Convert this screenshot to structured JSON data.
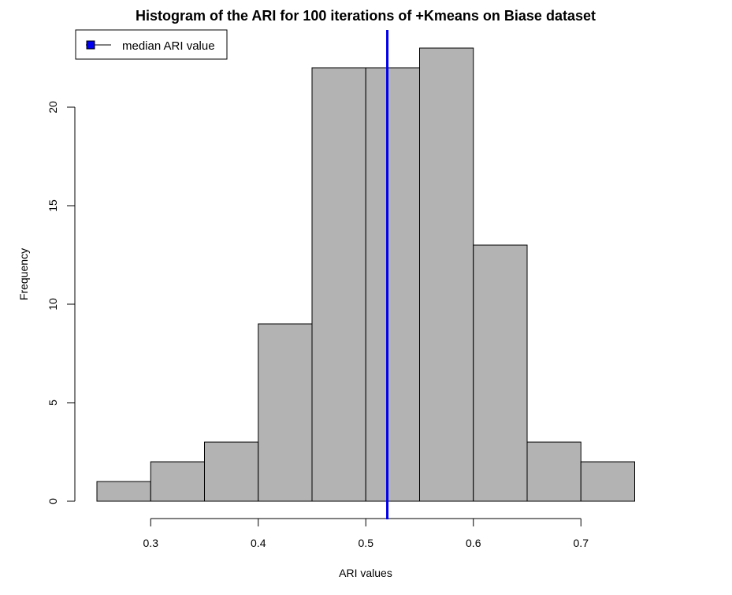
{
  "chart_data": {
    "type": "bar",
    "title": "Histogram of the ARI for 100 iterations of +Kmeans on Biase dataset",
    "xlabel": "ARI values",
    "ylabel": "Frequency",
    "bins": [
      {
        "start": 0.25,
        "end": 0.3,
        "count": 1
      },
      {
        "start": 0.3,
        "end": 0.35,
        "count": 2
      },
      {
        "start": 0.35,
        "end": 0.4,
        "count": 3
      },
      {
        "start": 0.4,
        "end": 0.45,
        "count": 9
      },
      {
        "start": 0.45,
        "end": 0.5,
        "count": 22
      },
      {
        "start": 0.5,
        "end": 0.55,
        "count": 22
      },
      {
        "start": 0.55,
        "end": 0.6,
        "count": 23
      },
      {
        "start": 0.6,
        "end": 0.65,
        "count": 13
      },
      {
        "start": 0.65,
        "end": 0.7,
        "count": 3
      },
      {
        "start": 0.7,
        "end": 0.75,
        "count": 2
      }
    ],
    "xticks": [
      "0.3",
      "0.4",
      "0.5",
      "0.6",
      "0.7"
    ],
    "yticks": [
      "0",
      "5",
      "10",
      "15",
      "20"
    ],
    "xlim": [
      0.25,
      0.75
    ],
    "ylim": [
      0,
      23
    ],
    "median_value": 0.52,
    "bar_color": "#b3b3b3",
    "median_color": "#0000ee",
    "legend": {
      "position": "top-left",
      "label": "median ARI value"
    },
    "grid": false
  }
}
